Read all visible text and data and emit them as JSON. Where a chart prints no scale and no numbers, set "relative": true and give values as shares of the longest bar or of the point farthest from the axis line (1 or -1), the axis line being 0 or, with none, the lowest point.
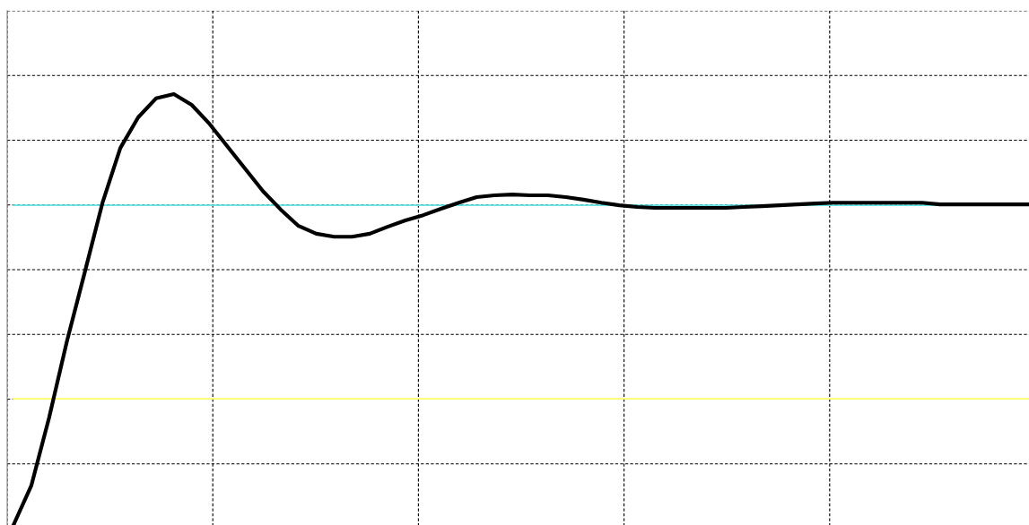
{
  "chart_data": {
    "type": "line",
    "relative": true,
    "grid": true,
    "categories": [
      null,
      null,
      null,
      null,
      null,
      null,
      null,
      null,
      null,
      null,
      null,
      null,
      null,
      null,
      null,
      null,
      null,
      null,
      null,
      null,
      null,
      null,
      null,
      null,
      null,
      null,
      null,
      null,
      null,
      null,
      null,
      null,
      null,
      null,
      null,
      null,
      null,
      null,
      null,
      null,
      null,
      null,
      null,
      null,
      null,
      null,
      null,
      null,
      null,
      null,
      null,
      null,
      null,
      null,
      null,
      null,
      null,
      null
    ],
    "series": [
      {
        "color": "#ffff66",
        "values": [
          0.293,
          0.293,
          0.293,
          0.293,
          0.293,
          0.293,
          0.293,
          0.293,
          0.293,
          0.293,
          0.293,
          0.293,
          0.293,
          0.293,
          0.293,
          0.293,
          0.293,
          0.293,
          0.293,
          0.293,
          0.293,
          0.293,
          0.293,
          0.293,
          0.293,
          0.293,
          0.293,
          0.293,
          0.293,
          0.293,
          0.293,
          0.293,
          0.293,
          0.293,
          0.293,
          0.293,
          0.293,
          0.293,
          0.293,
          0.293,
          0.293,
          0.293,
          0.293,
          0.293,
          0.293,
          0.293,
          0.293,
          0.293,
          0.293,
          0.293,
          0.293,
          0.293,
          0.293,
          0.293,
          0.293,
          0.293,
          0.293,
          0.293
        ]
      },
      {
        "color": "#66e6e6",
        "values": [
          0.742,
          0.742,
          0.742,
          0.742,
          0.742,
          0.742,
          0.742,
          0.742,
          0.742,
          0.742,
          0.742,
          0.742,
          0.742,
          0.742,
          0.742,
          0.742,
          0.742,
          0.742,
          0.742,
          0.742,
          0.742,
          0.742,
          0.742,
          0.742,
          0.742,
          0.742,
          0.742,
          0.742,
          0.742,
          0.742,
          0.742,
          0.742,
          0.742,
          0.742,
          0.742,
          0.742,
          0.742,
          0.742,
          0.742,
          0.742,
          0.742,
          0.742,
          0.742,
          0.742,
          0.742,
          0.742,
          0.742,
          0.742,
          0.742,
          0.742,
          0.742,
          0.742,
          0.742,
          null,
          null,
          null,
          null,
          null
        ]
      },
      {
        "color": "#000000",
        "values": [
          0,
          0.091,
          0.249,
          0.426,
          0.586,
          0.748,
          0.875,
          0.946,
          0.99,
          1,
          0.975,
          0.931,
          0.879,
          0.827,
          0.775,
          0.732,
          0.694,
          0.676,
          0.669,
          0.669,
          0.676,
          0.692,
          0.707,
          0.719,
          0.734,
          0.748,
          0.761,
          0.765,
          0.767,
          0.765,
          0.765,
          0.761,
          0.755,
          0.748,
          0.742,
          0.738,
          0.736,
          0.736,
          0.736,
          0.736,
          0.736,
          0.738,
          0.74,
          0.742,
          0.744,
          0.746,
          0.748,
          0.748,
          0.748,
          0.748,
          0.748,
          0.748,
          0.744,
          0.744,
          0.744,
          0.744,
          0.744,
          0.744
        ]
      }
    ]
  }
}
